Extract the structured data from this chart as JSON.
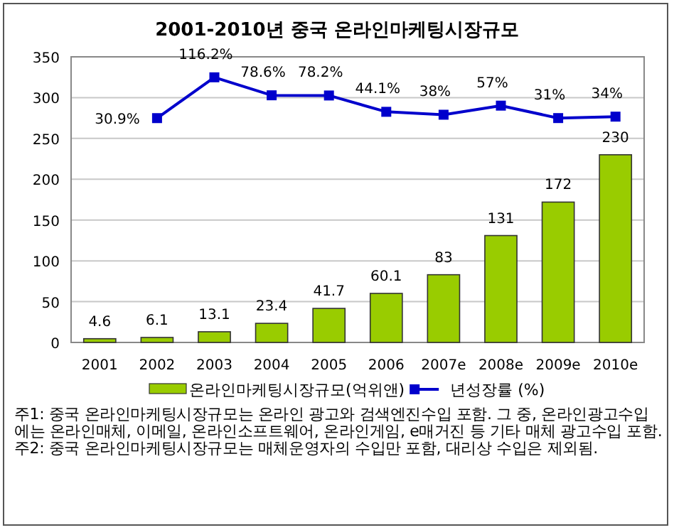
{
  "chart_data": {
    "type": "bar",
    "title": "2001-2010년 중국 온라인마케팅시장규모",
    "categories": [
      "2001",
      "2002",
      "2003",
      "2004",
      "2005",
      "2006",
      "2007e",
      "2008e",
      "2009e",
      "2010e"
    ],
    "series": [
      {
        "name": "온라인마케팅시장규모(억위앤)",
        "color": "#99cc00",
        "values": [
          4.6,
          6.1,
          13.1,
          23.4,
          41.7,
          60.1,
          83,
          131,
          172,
          230
        ],
        "value_labels": [
          "4.6",
          "6.1",
          "13.1",
          "23.4",
          "41.7",
          "60.1",
          "83",
          "131",
          "172",
          "230"
        ]
      },
      {
        "name": "년성장률 (%)",
        "type": "line",
        "axis": "y2",
        "color": "#0000cc",
        "marker": "square",
        "values": [
          null,
          30.9,
          116.2,
          78.6,
          78.2,
          44.1,
          38,
          57,
          31,
          34
        ],
        "value_labels": [
          null,
          "30.9%",
          "116.2%",
          "78.6%",
          "78.2%",
          "44.1%",
          "38%",
          "57%",
          "31%",
          "34%"
        ]
      }
    ],
    "ylim": [
      0,
      350
    ],
    "yticks": [
      0,
      50,
      100,
      150,
      200,
      250,
      300,
      350
    ],
    "y2lim": [
      -438,
      159
    ],
    "grid": "y",
    "legend": "bottom",
    "annotations": [
      "주1: 중국 온라인마케팅시장규모는 온라인 광고와 검색엔진수입 포함. 그 중, 온라인광고수입에는 온라인매체, 이메일, 온라인소프트웨어, 온라인게임, e매거진 등 기타 매체 광고수입 포함.",
      "주2: 중국 온라인마케팅시장규모는 매체운영자의 수입만 포함, 대리상 수입은 제외됨."
    ]
  }
}
